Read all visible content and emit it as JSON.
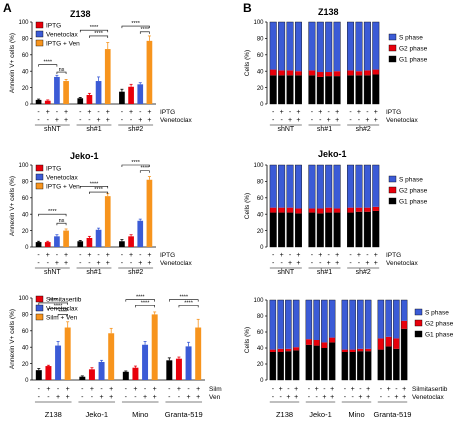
{
  "panel_labels": {
    "a": "A",
    "b": "B"
  },
  "chart_data": [
    {
      "type": "bar",
      "title": "Z138",
      "ylabel": "Annexin V+ cells (%)",
      "ylim": [
        0,
        100
      ],
      "yticks": [
        0,
        20,
        40,
        60,
        80,
        100
      ],
      "legend": {
        "placement": "top-left",
        "entries": [
          "IPTG",
          "Venetoclax",
          "IPTG + Ven"
        ]
      },
      "series_colors": [
        "#e8000b",
        "#3b5bd6",
        "#f7941d"
      ],
      "group_labels": [
        "shNT",
        "sh#1",
        "sh#2"
      ],
      "bars": [
        {
          "group": 0,
          "series": -1,
          "value": 5,
          "err": 1
        },
        {
          "group": 0,
          "series": 0,
          "value": 4,
          "err": 1
        },
        {
          "group": 0,
          "series": 1,
          "value": 33,
          "err": 2
        },
        {
          "group": 0,
          "series": 2,
          "value": 28,
          "err": 2
        },
        {
          "group": 1,
          "series": -1,
          "value": 7,
          "err": 1
        },
        {
          "group": 1,
          "series": 0,
          "value": 11,
          "err": 2
        },
        {
          "group": 1,
          "series": 1,
          "value": 28,
          "err": 5
        },
        {
          "group": 1,
          "series": 2,
          "value": 67,
          "err": 8
        },
        {
          "group": 2,
          "series": -1,
          "value": 15,
          "err": 3
        },
        {
          "group": 2,
          "series": 0,
          "value": 21,
          "err": 3
        },
        {
          "group": 2,
          "series": 1,
          "value": 24,
          "err": 2
        },
        {
          "group": 2,
          "series": 2,
          "value": 77,
          "err": 6
        }
      ],
      "treatment_rows": [
        {
          "label": "IPTG",
          "signs": [
            "-",
            "+",
            "-",
            "+",
            "-",
            "+",
            "-",
            "+",
            "-",
            "+",
            "-",
            "+"
          ]
        },
        {
          "label": "Venetoclax",
          "signs": [
            "-",
            "-",
            "+",
            "+",
            "-",
            "-",
            "+",
            "+",
            "-",
            "-",
            "+",
            "+"
          ]
        }
      ],
      "significance": [
        {
          "from": 0,
          "to": 2,
          "value": 48,
          "text": "****"
        },
        {
          "from": 2,
          "to": 3,
          "value": 39,
          "text": "ns"
        },
        {
          "from": 4,
          "to": 7,
          "value": 90,
          "text": "****"
        },
        {
          "from": 5,
          "to": 7,
          "value": 83,
          "text": "****"
        },
        {
          "from": 8,
          "to": 11,
          "value": 95,
          "text": "****"
        },
        {
          "from": 10,
          "to": 11,
          "value": 88,
          "text": "****"
        }
      ]
    },
    {
      "type": "bar",
      "title": "Jeko-1",
      "ylabel": "Annexin V+ cells (%)",
      "ylim": [
        0,
        100
      ],
      "yticks": [
        0,
        20,
        40,
        60,
        80,
        100
      ],
      "legend": {
        "placement": "top-left",
        "entries": [
          "IPTG",
          "Venetoclax",
          "IPTG + Ven"
        ]
      },
      "series_colors": [
        "#e8000b",
        "#3b5bd6",
        "#f7941d"
      ],
      "group_labels": [
        "shNT",
        "sh#1",
        "sh#2"
      ],
      "bars": [
        {
          "group": 0,
          "series": -1,
          "value": 6,
          "err": 1
        },
        {
          "group": 0,
          "series": 0,
          "value": 6,
          "err": 1
        },
        {
          "group": 0,
          "series": 1,
          "value": 13,
          "err": 2
        },
        {
          "group": 0,
          "series": 2,
          "value": 20,
          "err": 2
        },
        {
          "group": 1,
          "series": -1,
          "value": 7,
          "err": 1
        },
        {
          "group": 1,
          "series": 0,
          "value": 11,
          "err": 2
        },
        {
          "group": 1,
          "series": 1,
          "value": 21,
          "err": 2
        },
        {
          "group": 1,
          "series": 2,
          "value": 62,
          "err": 3
        },
        {
          "group": 2,
          "series": -1,
          "value": 7,
          "err": 2
        },
        {
          "group": 2,
          "series": 0,
          "value": 13,
          "err": 2
        },
        {
          "group": 2,
          "series": 1,
          "value": 32,
          "err": 2
        },
        {
          "group": 2,
          "series": 2,
          "value": 82,
          "err": 4
        }
      ],
      "treatment_rows": [
        {
          "label": "IPTG",
          "signs": [
            "-",
            "+",
            "-",
            "+",
            "-",
            "+",
            "-",
            "+",
            "-",
            "+",
            "-",
            "+"
          ]
        },
        {
          "label": "Venetoclax",
          "signs": [
            "-",
            "-",
            "+",
            "+",
            "-",
            "-",
            "+",
            "+",
            "-",
            "-",
            "+",
            "+"
          ]
        }
      ],
      "significance": [
        {
          "from": 0,
          "to": 3,
          "value": 40,
          "text": "****"
        },
        {
          "from": 2,
          "to": 3,
          "value": 29,
          "text": "ns"
        },
        {
          "from": 4,
          "to": 7,
          "value": 74,
          "text": "****"
        },
        {
          "from": 5,
          "to": 7,
          "value": 67,
          "text": "****"
        },
        {
          "from": 8,
          "to": 11,
          "value": 100,
          "text": "****"
        },
        {
          "from": 10,
          "to": 11,
          "value": 93,
          "text": "****"
        }
      ]
    },
    {
      "type": "bar",
      "title": "",
      "ylabel": "Annexin V+ cells (%)",
      "ylim": [
        0,
        100
      ],
      "yticks": [
        0,
        20,
        40,
        60,
        80,
        100
      ],
      "legend": {
        "placement": "top-left",
        "entries": [
          "Silmitasertib",
          "Venetoclax",
          "Silm + Ven"
        ]
      },
      "series_colors": [
        "#e8000b",
        "#3b5bd6",
        "#f7941d"
      ],
      "group_labels": [
        "Z138",
        "Jeko-1",
        "Mino",
        "Granta-519"
      ],
      "bars": [
        {
          "group": 0,
          "series": -1,
          "value": 12,
          "err": 2
        },
        {
          "group": 0,
          "series": 0,
          "value": 17,
          "err": 1
        },
        {
          "group": 0,
          "series": 1,
          "value": 42,
          "err": 5
        },
        {
          "group": 0,
          "series": 2,
          "value": 64,
          "err": 7
        },
        {
          "group": 1,
          "series": -1,
          "value": 4,
          "err": 1
        },
        {
          "group": 1,
          "series": 0,
          "value": 13,
          "err": 2
        },
        {
          "group": 1,
          "series": 1,
          "value": 22,
          "err": 2
        },
        {
          "group": 1,
          "series": 2,
          "value": 57,
          "err": 6
        },
        {
          "group": 2,
          "series": -1,
          "value": 10,
          "err": 1
        },
        {
          "group": 2,
          "series": 0,
          "value": 15,
          "err": 2
        },
        {
          "group": 2,
          "series": 1,
          "value": 43,
          "err": 4
        },
        {
          "group": 2,
          "series": 2,
          "value": 80,
          "err": 3
        },
        {
          "group": 3,
          "series": -1,
          "value": 24,
          "err": 3
        },
        {
          "group": 3,
          "series": 0,
          "value": 26,
          "err": 2
        },
        {
          "group": 3,
          "series": 1,
          "value": 41,
          "err": 5
        },
        {
          "group": 3,
          "series": 2,
          "value": 64,
          "err": 10
        }
      ],
      "treatment_rows": [
        {
          "label": "Silm",
          "signs": [
            "-",
            "+",
            "-",
            "+",
            "-",
            "+",
            "-",
            "+",
            "-",
            "+",
            "-",
            "+",
            "-",
            "+",
            "-",
            "+"
          ]
        },
        {
          "label": "Ven",
          "signs": [
            "-",
            "-",
            "+",
            "+",
            "-",
            "-",
            "+",
            "+",
            "-",
            "-",
            "+",
            "+",
            "-",
            "-",
            "+",
            "+"
          ]
        }
      ],
      "significance": [
        {
          "from": 0,
          "to": 3,
          "value": 94,
          "text": "****"
        },
        {
          "from": 1,
          "to": 3,
          "value": 87,
          "text": "****"
        },
        {
          "from": 2,
          "to": 3,
          "value": 80,
          "text": "****"
        },
        {
          "from": 8,
          "to": 11,
          "value": 98,
          "text": "****"
        },
        {
          "from": 9,
          "to": 11,
          "value": 91,
          "text": "****"
        },
        {
          "from": 12,
          "to": 15,
          "value": 98,
          "text": "****"
        },
        {
          "from": 13,
          "to": 15,
          "value": 91,
          "text": "****"
        }
      ]
    },
    {
      "type": "bar",
      "stacked": true,
      "title": "Z138",
      "ylabel": "Cells (%)",
      "ylim": [
        0,
        100
      ],
      "yticks": [
        0,
        20,
        40,
        60,
        80,
        100
      ],
      "legend": {
        "placement": "right",
        "entries": [
          "S phase",
          "G2 phase",
          "G1 phase"
        ]
      },
      "stack_colors": {
        "G1": "#000000",
        "G2": "#e8000b",
        "S": "#3b5bd6"
      },
      "group_labels": [
        "shNT",
        "sh#1",
        "sh#2"
      ],
      "bars": [
        {
          "G1": 35,
          "G2": 7
        },
        {
          "G1": 35,
          "G2": 6
        },
        {
          "G1": 35,
          "G2": 6
        },
        {
          "G1": 35,
          "G2": 5
        },
        {
          "G1": 35,
          "G2": 6
        },
        {
          "G1": 33,
          "G2": 6
        },
        {
          "G1": 34,
          "G2": 5
        },
        {
          "G1": 34,
          "G2": 6
        },
        {
          "G1": 35,
          "G2": 6
        },
        {
          "G1": 35,
          "G2": 5
        },
        {
          "G1": 35,
          "G2": 6
        },
        {
          "G1": 36,
          "G2": 6
        }
      ],
      "treatment_rows": [
        {
          "label": "IPTG",
          "signs": [
            "-",
            "+",
            "-",
            "+",
            "-",
            "+",
            "-",
            "+",
            "-",
            "+",
            "-",
            "+"
          ]
        },
        {
          "label": "Venetoclax",
          "signs": [
            "-",
            "-",
            "+",
            "+",
            "-",
            "-",
            "+",
            "+",
            "-",
            "-",
            "+",
            "+"
          ]
        }
      ]
    },
    {
      "type": "bar",
      "stacked": true,
      "title": "Jeko-1",
      "ylabel": "Cells (%)",
      "ylim": [
        0,
        100
      ],
      "yticks": [
        0,
        20,
        40,
        60,
        80,
        100
      ],
      "legend": {
        "placement": "right",
        "entries": [
          "S phase",
          "G2 phase",
          "G1 phase"
        ]
      },
      "stack_colors": {
        "G1": "#000000",
        "G2": "#e8000b",
        "S": "#3b5bd6"
      },
      "group_labels": [
        "shNT",
        "sh#1",
        "sh#2"
      ],
      "bars": [
        {
          "G1": 42,
          "G2": 6
        },
        {
          "G1": 42,
          "G2": 6
        },
        {
          "G1": 42,
          "G2": 6
        },
        {
          "G1": 41,
          "G2": 6
        },
        {
          "G1": 42,
          "G2": 5
        },
        {
          "G1": 41,
          "G2": 6
        },
        {
          "G1": 42,
          "G2": 6
        },
        {
          "G1": 42,
          "G2": 5
        },
        {
          "G1": 42,
          "G2": 6
        },
        {
          "G1": 43,
          "G2": 5
        },
        {
          "G1": 43,
          "G2": 5
        },
        {
          "G1": 44,
          "G2": 5
        }
      ],
      "treatment_rows": [
        {
          "label": "IPTG",
          "signs": [
            "-",
            "+",
            "-",
            "+",
            "-",
            "+",
            "-",
            "+",
            "-",
            "+",
            "-",
            "+"
          ]
        },
        {
          "label": "Venetoclax",
          "signs": [
            "-",
            "-",
            "+",
            "+",
            "-",
            "-",
            "+",
            "+",
            "-",
            "-",
            "+",
            "+"
          ]
        }
      ]
    },
    {
      "type": "bar",
      "stacked": true,
      "title": "",
      "ylabel": "Cells (%)",
      "ylim": [
        0,
        100
      ],
      "yticks": [
        0,
        20,
        40,
        60,
        80,
        100
      ],
      "legend": {
        "placement": "right",
        "entries": [
          "S phase",
          "G2 phase",
          "G1 phase"
        ]
      },
      "stack_colors": {
        "G1": "#000000",
        "G2": "#e8000b",
        "S": "#3b5bd6"
      },
      "group_labels": [
        "Z138",
        "Jeko-1",
        "Mino",
        "Granta-519"
      ],
      "bars": [
        {
          "G1": 35,
          "G2": 3
        },
        {
          "G1": 35,
          "G2": 4
        },
        {
          "G1": 36,
          "G2": 3
        },
        {
          "G1": 37,
          "G2": 4
        },
        {
          "G1": 44,
          "G2": 7
        },
        {
          "G1": 43,
          "G2": 7
        },
        {
          "G1": 40,
          "G2": 7
        },
        {
          "G1": 47,
          "G2": 6
        },
        {
          "G1": 35,
          "G2": 3
        },
        {
          "G1": 35,
          "G2": 3
        },
        {
          "G1": 36,
          "G2": 3
        },
        {
          "G1": 36,
          "G2": 3
        },
        {
          "G1": 38,
          "G2": 14
        },
        {
          "G1": 42,
          "G2": 12
        },
        {
          "G1": 39,
          "G2": 13
        },
        {
          "G1": 64,
          "G2": 10
        }
      ],
      "treatment_rows": [
        {
          "label": "Silmitasertib",
          "signs": [
            "-",
            "+",
            "-",
            "+",
            "-",
            "+",
            "-",
            "+",
            "-",
            "+",
            "-",
            "+",
            "-",
            "+",
            "-",
            "+"
          ]
        },
        {
          "label": "Venetoclax",
          "signs": [
            "-",
            "-",
            "+",
            "+",
            "-",
            "-",
            "+",
            "+",
            "-",
            "-",
            "+",
            "+",
            "-",
            "-",
            "+",
            "+"
          ]
        }
      ]
    }
  ]
}
